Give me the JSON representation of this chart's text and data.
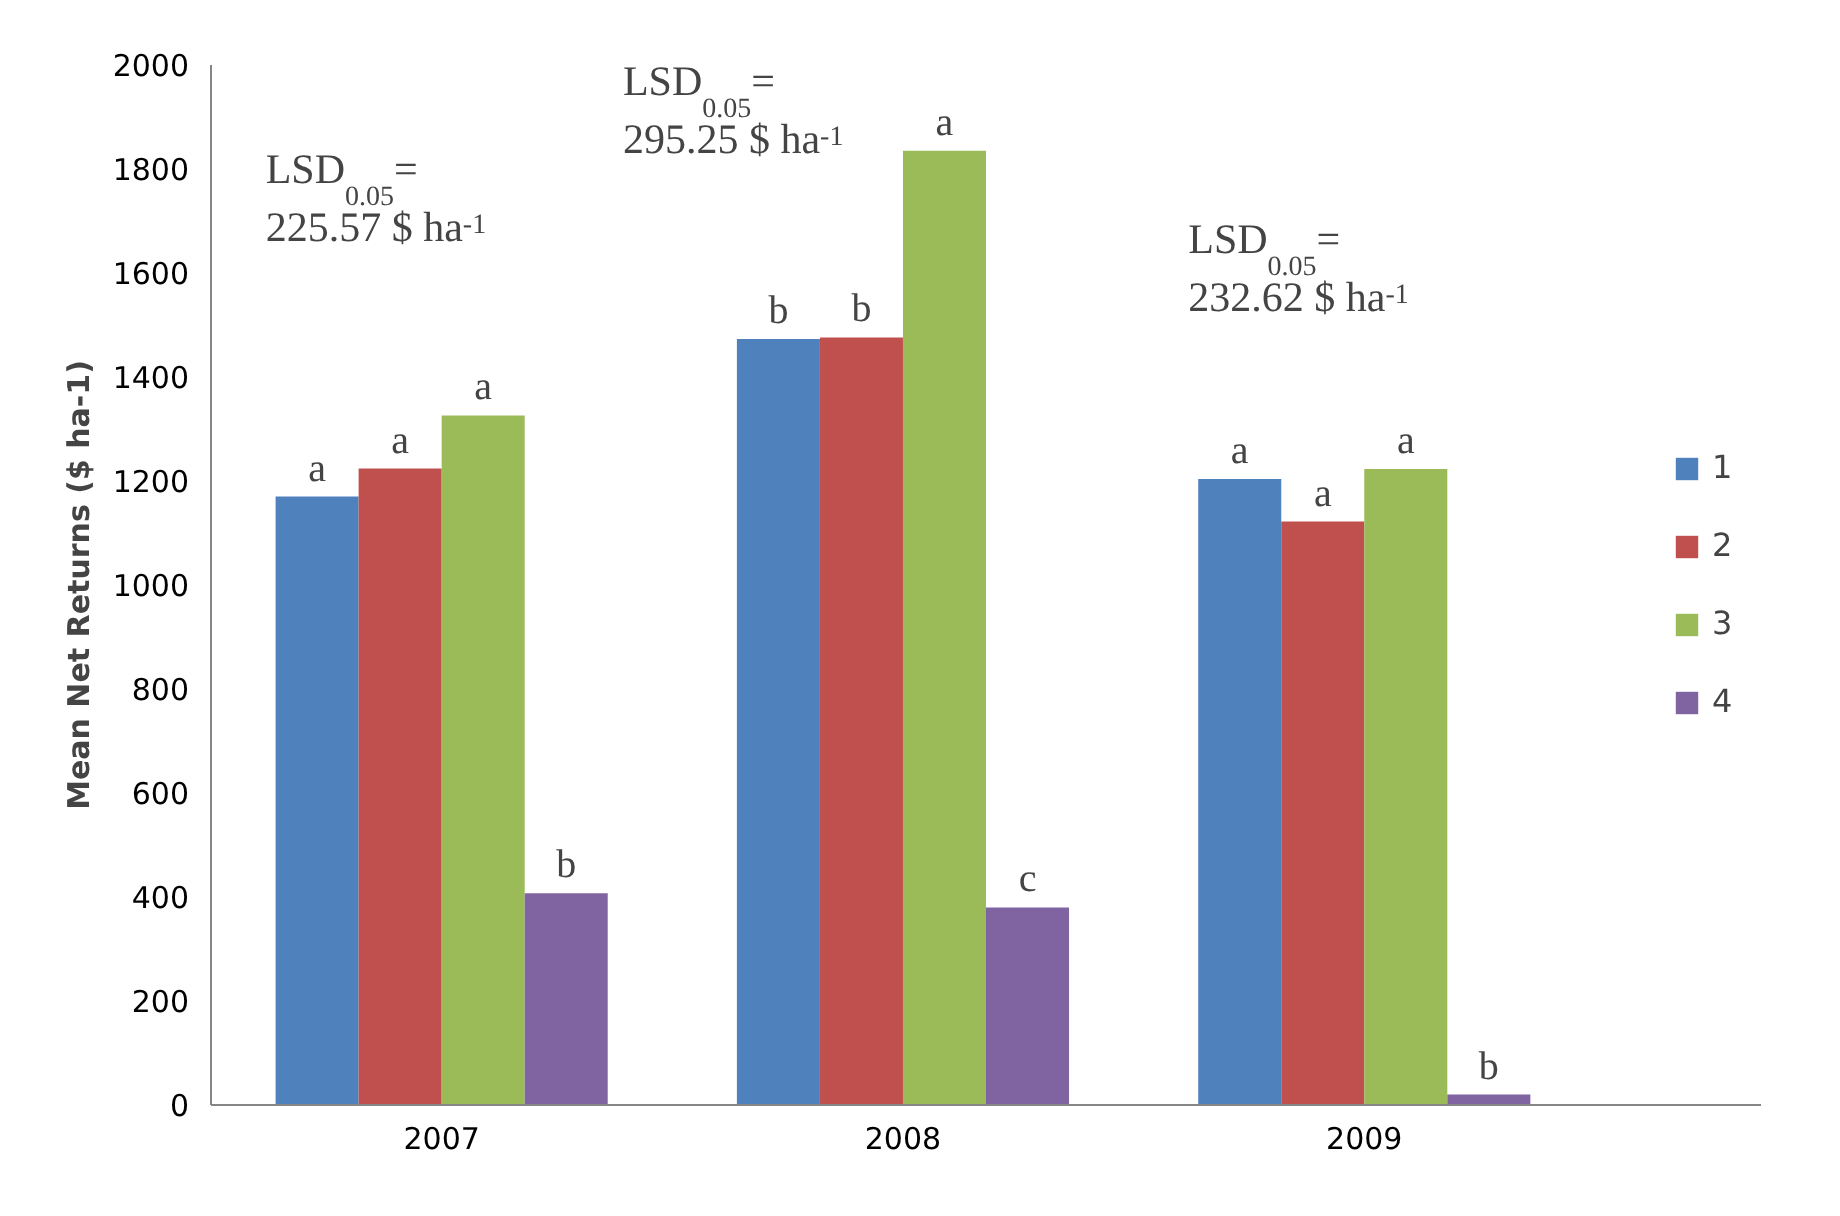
{
  "chart_data": {
    "type": "bar",
    "ylabel": "Mean Net Returns ($ ha-1)",
    "categories": [
      "2007",
      "2008",
      "2009"
    ],
    "series": [
      {
        "name": "1",
        "color": "#4f81bd",
        "values": [
          1170,
          1473,
          1204
        ],
        "value_labels": [
          "a",
          "b",
          "a"
        ]
      },
      {
        "name": "2",
        "color": "#c0504d",
        "values": [
          1224,
          1476,
          1122
        ],
        "value_labels": [
          "a",
          "b",
          "a"
        ]
      },
      {
        "name": "3",
        "color": "#9bbb59",
        "values": [
          1326,
          1835,
          1223
        ],
        "value_labels": [
          "a",
          "a",
          "a"
        ]
      },
      {
        "name": "4",
        "color": "#8064a2",
        "values": [
          407,
          380,
          20
        ],
        "value_labels": [
          "b",
          "c",
          "b"
        ]
      }
    ],
    "ylim": [
      0,
      2000
    ],
    "yticks": [
      0,
      200,
      400,
      600,
      800,
      1000,
      1200,
      1400,
      1600,
      1800,
      2000
    ],
    "grid": false,
    "legend": "right",
    "annotations": [
      "LSD$_{0.05}$ =\n225.57 $ ha$^{-1}$",
      "LSD$_{0.05}$ =\n295.25 $ ha$^{-1}$",
      "LSD$_{0.05}$ =\n232.62 $ ha$^{-1}$"
    ]
  }
}
